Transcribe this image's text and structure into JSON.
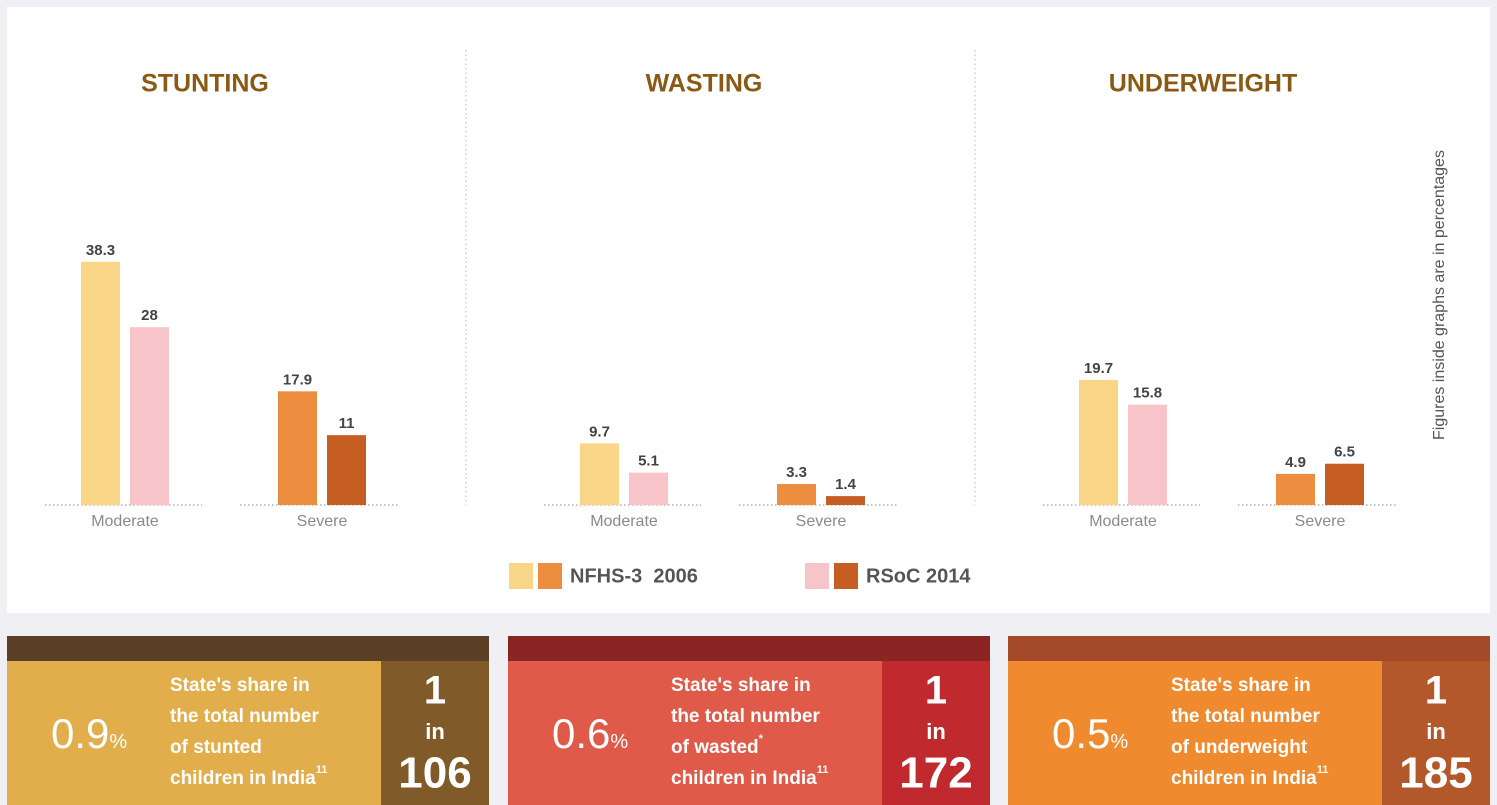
{
  "chart_data": [
    {
      "type": "bar",
      "title": "STUNTING",
      "categories": [
        "Moderate",
        "Severe"
      ],
      "series": [
        {
          "colors": [
            "#f9d687",
            "#ec8d40"
          ],
          "values": [
            38.3,
            17.9
          ]
        },
        {
          "colors": [
            "#f7c4c9",
            "#c65d22"
          ],
          "values": [
            28,
            11
          ]
        }
      ]
    },
    {
      "type": "bar",
      "title": "WASTING",
      "categories": [
        "Moderate",
        "Severe"
      ],
      "series": [
        {
          "colors": [
            "#f9d687",
            "#ec8d40"
          ],
          "values": [
            9.7,
            3.3
          ]
        },
        {
          "colors": [
            "#f7c4c9",
            "#c65d22"
          ],
          "values": [
            5.1,
            1.4
          ]
        }
      ]
    },
    {
      "type": "bar",
      "title": "UNDERWEIGHT",
      "categories": [
        "Moderate",
        "Severe"
      ],
      "series": [
        {
          "colors": [
            "#f9d687",
            "#ec8d40"
          ],
          "values": [
            19.7,
            4.9
          ]
        },
        {
          "colors": [
            "#f7c4c9",
            "#c65d22"
          ],
          "values": [
            15.8,
            6.5
          ]
        }
      ]
    }
  ],
  "legend": [
    {
      "name": "NFHS-3  2006",
      "colors": [
        "#f9d687",
        "#ec8d40"
      ]
    },
    {
      "name": "RSoC 2014",
      "colors": [
        "#f7c4c9",
        "#c65d22"
      ]
    }
  ],
  "note": "Figures inside graphs are in percentages",
  "cards": [
    {
      "share": "0.9",
      "unit": "%",
      "lines": [
        {
          "text": "State's share in"
        },
        {
          "text": "the total number"
        },
        {
          "text": "of stunted"
        },
        {
          "text": "children in India",
          "sup": "11"
        }
      ],
      "ratio": [
        "1",
        "in",
        "106"
      ],
      "colors": [
        "#5a3e25",
        "#e2ad4b",
        "#805a29"
      ]
    },
    {
      "share": "0.6",
      "unit": "%",
      "lines": [
        {
          "text": "State's share in"
        },
        {
          "text": "the total number"
        },
        {
          "text": "of wasted",
          "sup": "*"
        },
        {
          "text": "children in India",
          "sup": "11"
        }
      ],
      "ratio": [
        "1",
        "in",
        "172"
      ],
      "colors": [
        "#8a2524",
        "#e05a4a",
        "#c0292e"
      ]
    },
    {
      "share": "0.5",
      "unit": "%",
      "lines": [
        {
          "text": "State's share in"
        },
        {
          "text": "the total number"
        },
        {
          "text": "of underweight"
        },
        {
          "text": "children in India",
          "sup": "11"
        }
      ],
      "ratio": [
        "1",
        "in",
        "185"
      ],
      "colors": [
        "#a54a28",
        "#ef8a2e",
        "#b3582a"
      ]
    }
  ]
}
